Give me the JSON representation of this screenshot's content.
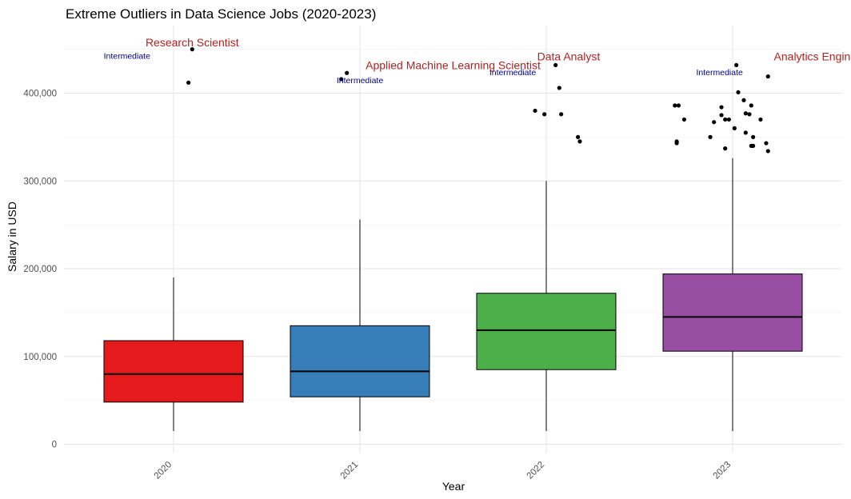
{
  "chart_data": {
    "type": "box",
    "title": "Extreme Outliers in Data Science Jobs (2020-2023)",
    "xlabel": "Year",
    "ylabel": "Salary in USD",
    "categories": [
      "2020",
      "2021",
      "2022",
      "2023"
    ],
    "ylim": [
      0,
      450000
    ],
    "y_ticks": [
      0,
      100000,
      200000,
      300000,
      400000
    ],
    "y_tick_labels": [
      "0",
      "100,000",
      "200,000",
      "300,000",
      "400,000"
    ],
    "grid": true,
    "legend": "none",
    "boxes": [
      {
        "category": "2020",
        "color": "#e41a1c",
        "whisker_low": 15000,
        "q1": 48000,
        "median": 80000,
        "q3": 118000,
        "whisker_high": 190000
      },
      {
        "category": "2021",
        "color": "#377eb8",
        "whisker_low": 15000,
        "q1": 54000,
        "median": 83000,
        "q3": 135000,
        "whisker_high": 256000
      },
      {
        "category": "2022",
        "color": "#4daf4a",
        "whisker_low": 15000,
        "q1": 85000,
        "median": 130000,
        "q3": 172000,
        "whisker_high": 300000
      },
      {
        "category": "2023",
        "color": "#984ea3",
        "whisker_low": 15000,
        "q1": 106000,
        "median": 145000,
        "q3": 194000,
        "whisker_high": 326000
      }
    ],
    "outliers": [
      {
        "category": "2020",
        "points": [
          {
            "jitter": 0.1,
            "y": 450000
          },
          {
            "jitter": 0.08,
            "y": 412000
          }
        ]
      },
      {
        "category": "2021",
        "points": [
          {
            "jitter": -0.07,
            "y": 423000
          },
          {
            "jitter": -0.1,
            "y": 416000
          }
        ]
      },
      {
        "category": "2022",
        "points": [
          {
            "jitter": 0.05,
            "y": 432000
          },
          {
            "jitter": 0.07,
            "y": 406000
          },
          {
            "jitter": -0.06,
            "y": 380000
          },
          {
            "jitter": -0.01,
            "y": 376000
          },
          {
            "jitter": 0.08,
            "y": 376000
          },
          {
            "jitter": 0.17,
            "y": 350000
          },
          {
            "jitter": 0.18,
            "y": 345000
          }
        ]
      },
      {
        "category": "2023",
        "points": [
          {
            "jitter": 0.02,
            "y": 432000
          },
          {
            "jitter": 0.19,
            "y": 419000
          },
          {
            "jitter": 0.03,
            "y": 401000
          },
          {
            "jitter": 0.06,
            "y": 392000
          },
          {
            "jitter": -0.31,
            "y": 386000
          },
          {
            "jitter": -0.29,
            "y": 386000
          },
          {
            "jitter": 0.1,
            "y": 386000
          },
          {
            "jitter": -0.06,
            "y": 384000
          },
          {
            "jitter": 0.07,
            "y": 377000
          },
          {
            "jitter": 0.09,
            "y": 376000
          },
          {
            "jitter": -0.06,
            "y": 375000
          },
          {
            "jitter": -0.26,
            "y": 370000
          },
          {
            "jitter": -0.04,
            "y": 370000
          },
          {
            "jitter": -0.02,
            "y": 370000
          },
          {
            "jitter": 0.15,
            "y": 370000
          },
          {
            "jitter": -0.1,
            "y": 367000
          },
          {
            "jitter": 0.01,
            "y": 360000
          },
          {
            "jitter": 0.07,
            "y": 355000
          },
          {
            "jitter": -0.12,
            "y": 350000
          },
          {
            "jitter": 0.11,
            "y": 350000
          },
          {
            "jitter": -0.3,
            "y": 345000
          },
          {
            "jitter": -0.3,
            "y": 343000
          },
          {
            "jitter": 0.18,
            "y": 343000
          },
          {
            "jitter": 0.1,
            "y": 340000
          },
          {
            "jitter": 0.11,
            "y": 340000
          },
          {
            "jitter": -0.04,
            "y": 337000
          },
          {
            "jitter": 0.19,
            "y": 334000
          }
        ]
      }
    ],
    "annotations": [
      {
        "category": "2020",
        "job_title": "Research Scientist",
        "job_offset": 0.1,
        "job_y": 458000,
        "experience_level": "Intermediate",
        "level_offset": -0.25,
        "level_y": 443000
      },
      {
        "category": "2021",
        "job_title": "Applied Machine Learning Scientist",
        "job_offset": 0.5,
        "job_y": 432000,
        "experience_level": "Intermediate",
        "level_offset": 0.0,
        "level_y": 415000
      },
      {
        "category": "2022",
        "job_title": "Data Analyst",
        "job_offset": 0.12,
        "job_y": 442000,
        "experience_level": "Intermediate",
        "level_offset": -0.18,
        "level_y": 424000
      },
      {
        "category": "2023",
        "job_title": "Analytics Engineer",
        "job_offset": 0.47,
        "job_y": 442000,
        "experience_level": "Intermediate",
        "level_offset": -0.07,
        "level_y": 424000
      }
    ]
  }
}
